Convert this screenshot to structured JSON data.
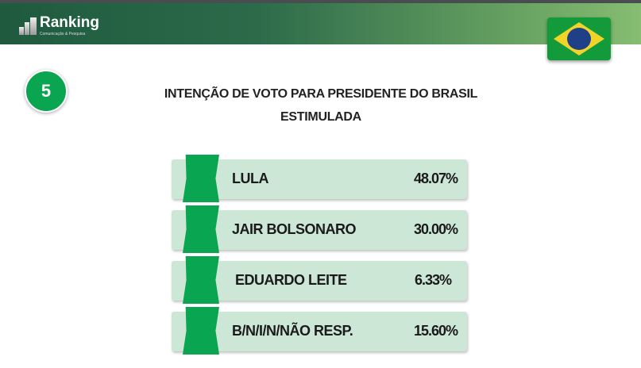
{
  "header": {
    "logo_text": "Ranking",
    "logo_subtitle": "Comunicação & Pesquisa",
    "flag_icon": "brazil-flag"
  },
  "question_number": "5",
  "title_line1": "INTENÇÃO DE VOTO PARA PRESIDENTE DO BRASIL",
  "title_line2": "ESTIMULADA",
  "results": [
    {
      "name": "LULA",
      "percent": "48.07%"
    },
    {
      "name": "JAIR BOLSONARO",
      "percent": "30.00%"
    },
    {
      "name": "EDUARDO LEITE",
      "percent": "6.33%"
    },
    {
      "name": "B/N/I/N/NÃO RESP.",
      "percent": "15.60%"
    }
  ],
  "colors": {
    "accent": "#0aa550",
    "row_bg": "#cce7d5"
  }
}
